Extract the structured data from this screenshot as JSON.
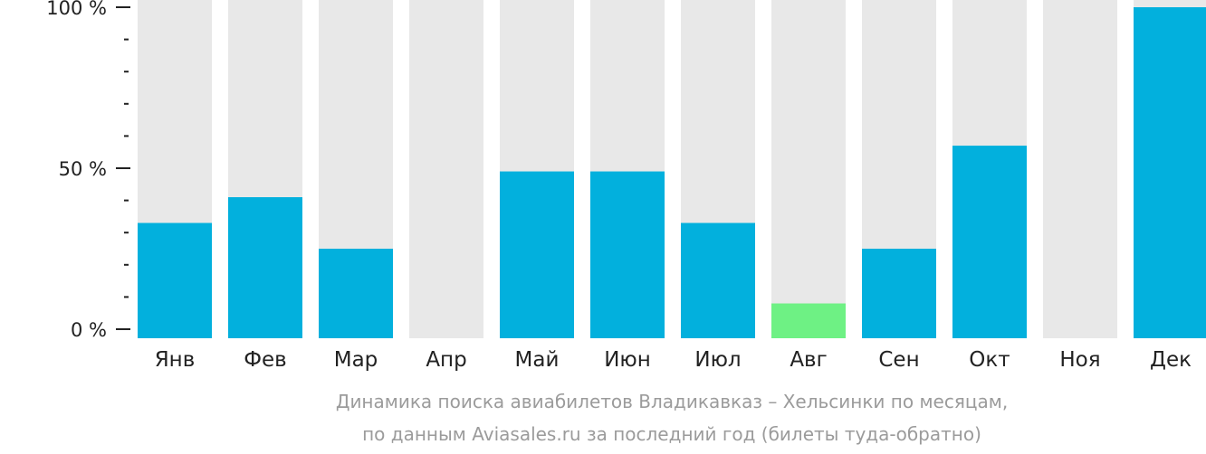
{
  "chart_data": {
    "type": "bar",
    "categories": [
      "Янв",
      "Фев",
      "Мар",
      "Апр",
      "Май",
      "Июн",
      "Июл",
      "Авг",
      "Сен",
      "Окт",
      "Ноя",
      "Дек"
    ],
    "values": [
      33,
      41,
      25,
      0,
      49,
      49,
      33,
      8,
      25,
      57,
      0,
      100
    ],
    "highlight_index": 7,
    "ylim": [
      0,
      100
    ],
    "yticks": [
      {
        "value": 0,
        "label": "0 %"
      },
      {
        "value": 50,
        "label": "50 %"
      },
      {
        "value": 100,
        "label": "100 %"
      }
    ],
    "minor_ytick_step": 10,
    "grid": false,
    "title": "",
    "xlabel": "",
    "ylabel": "",
    "colors": {
      "bar": "#02b0dd",
      "highlight": "#6ef184",
      "background_bar": "#e8e8e8",
      "axis": "#222222"
    }
  },
  "caption": {
    "line1": "Динамика поиска авиабилетов Владикавказ – Хельсинки по месяцам,",
    "line2": "по данным Aviasales.ru за последний год (билеты туда-обратно)"
  }
}
